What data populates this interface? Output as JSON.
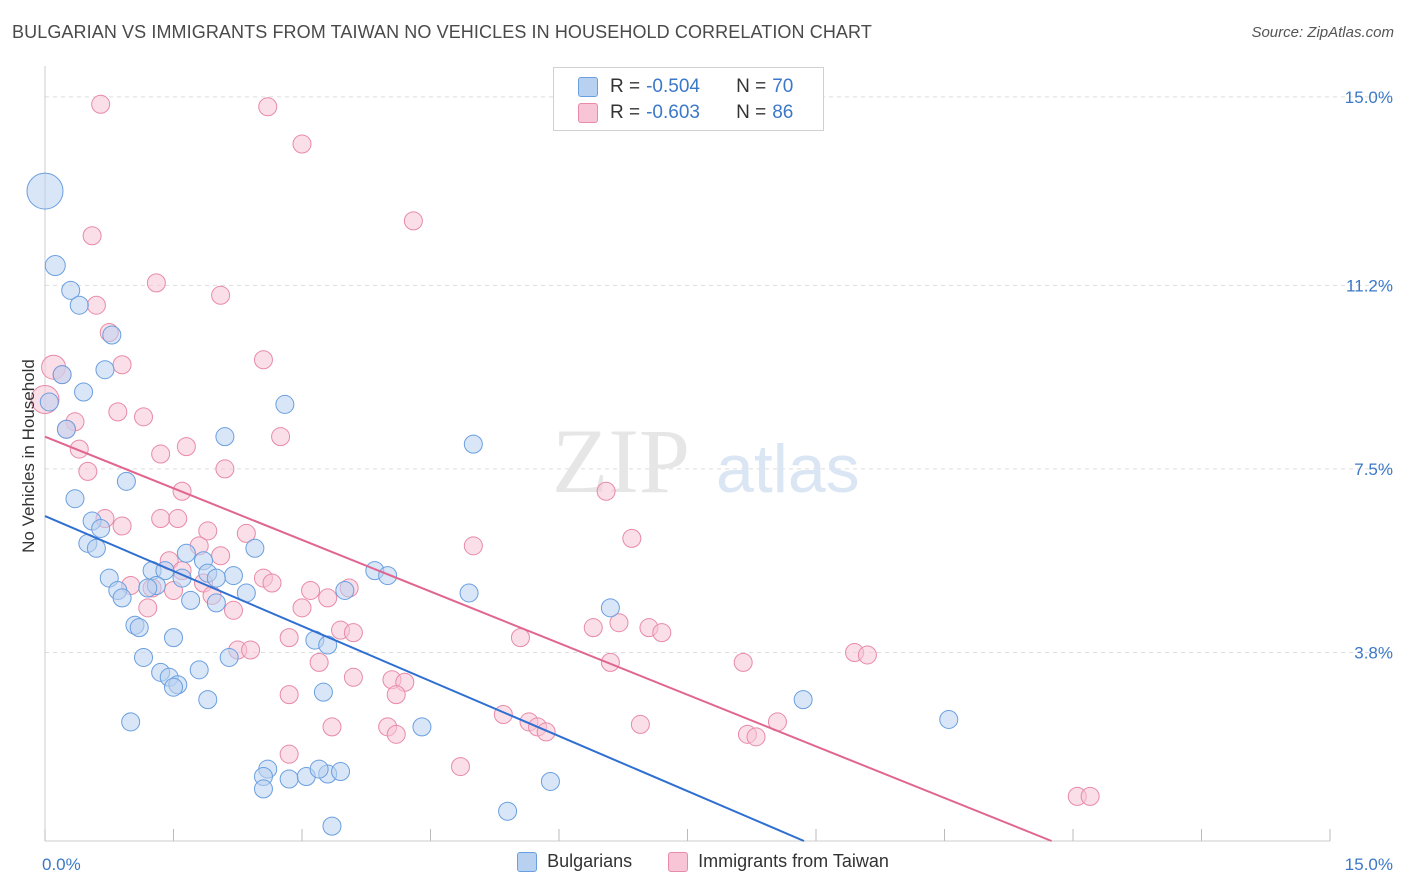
{
  "title": "BULGARIAN VS IMMIGRANTS FROM TAIWAN NO VEHICLES IN HOUSEHOLD CORRELATION CHART",
  "source": "Source: ZipAtlas.com",
  "watermark": {
    "zip": "ZIP",
    "atlas": "atlas"
  },
  "legend": {
    "series1": {
      "r_label": "R =",
      "r_value": "-0.504",
      "n_label": "N =",
      "n_value": "70"
    },
    "series2": {
      "r_label": "R =",
      "r_value": "-0.603",
      "n_label": "N =",
      "n_value": "86"
    }
  },
  "colors": {
    "bulgarians_fill": "#b9d1f0",
    "bulgarians_stroke": "#6a9fe0",
    "bulgarians_line": "#2f6fd1",
    "taiwan_fill": "#f7c5d5",
    "taiwan_stroke": "#e88aa8",
    "taiwan_line": "#e0668f",
    "tick_text": "#3b78c8",
    "grid": "#dddddd"
  },
  "chart_data": {
    "type": "scatter",
    "title": "BULGARIAN VS IMMIGRANTS FROM TAIWAN NO VEHICLES IN HOUSEHOLD CORRELATION CHART",
    "xlabel": "",
    "ylabel": "No Vehicles in Household",
    "xlim": [
      0,
      15
    ],
    "ylim": [
      0,
      15.4
    ],
    "x_tick_labels": [
      "0.0%",
      "15.0%"
    ],
    "y_ticks": [
      3.8,
      7.5,
      11.2,
      15.0
    ],
    "y_tick_labels": [
      "3.8%",
      "7.5%",
      "11.2%",
      "15.0%"
    ],
    "grid": true,
    "legend_position": "top-center",
    "series": [
      {
        "name": "Bulgarians",
        "trend": {
          "x0": 0,
          "y0": 6.55,
          "x1": 8.86,
          "y1": 0
        },
        "points": [
          [
            0.0,
            13.1,
            18
          ],
          [
            0.12,
            11.6,
            10
          ],
          [
            0.3,
            11.1,
            9
          ],
          [
            0.4,
            10.8,
            9
          ],
          [
            0.78,
            10.2,
            9
          ],
          [
            0.2,
            9.4,
            9
          ],
          [
            0.7,
            9.5,
            9
          ],
          [
            0.45,
            9.05,
            9
          ],
          [
            0.05,
            8.85,
            9
          ],
          [
            0.25,
            8.3,
            9
          ],
          [
            2.8,
            8.8,
            9
          ],
          [
            2.1,
            8.15,
            9
          ],
          [
            5.0,
            8.0,
            9
          ],
          [
            0.95,
            7.25,
            9
          ],
          [
            0.35,
            6.9,
            9
          ],
          [
            0.55,
            6.45,
            9
          ],
          [
            0.65,
            6.3,
            9
          ],
          [
            0.5,
            6.0,
            9
          ],
          [
            0.6,
            5.9,
            9
          ],
          [
            2.45,
            5.9,
            9
          ],
          [
            1.65,
            5.8,
            9
          ],
          [
            1.85,
            5.65,
            9
          ],
          [
            1.25,
            5.45,
            9
          ],
          [
            1.4,
            5.45,
            9
          ],
          [
            1.9,
            5.4,
            9
          ],
          [
            2.2,
            5.35,
            9
          ],
          [
            3.85,
            5.45,
            9
          ],
          [
            4.0,
            5.35,
            9
          ],
          [
            0.75,
            5.3,
            9
          ],
          [
            1.6,
            5.3,
            9
          ],
          [
            1.3,
            5.15,
            9
          ],
          [
            1.2,
            5.1,
            9
          ],
          [
            0.85,
            5.05,
            9
          ],
          [
            2.0,
            5.3,
            9
          ],
          [
            3.5,
            5.05,
            9
          ],
          [
            2.35,
            5.0,
            9
          ],
          [
            4.95,
            5.0,
            9
          ],
          [
            0.9,
            4.9,
            9
          ],
          [
            1.7,
            4.85,
            9
          ],
          [
            2.0,
            4.8,
            9
          ],
          [
            6.6,
            4.7,
            9
          ],
          [
            1.05,
            4.35,
            9
          ],
          [
            1.1,
            4.3,
            9
          ],
          [
            1.5,
            4.1,
            9
          ],
          [
            3.15,
            4.05,
            9
          ],
          [
            3.3,
            3.95,
            9
          ],
          [
            1.15,
            3.7,
            9
          ],
          [
            2.15,
            3.7,
            9
          ],
          [
            1.35,
            3.4,
            9
          ],
          [
            1.45,
            3.3,
            9
          ],
          [
            1.8,
            3.45,
            9
          ],
          [
            1.55,
            3.15,
            9
          ],
          [
            1.5,
            3.1,
            9
          ],
          [
            3.25,
            3.0,
            9
          ],
          [
            1.9,
            2.85,
            9
          ],
          [
            8.85,
            2.85,
            9
          ],
          [
            1.0,
            2.4,
            9
          ],
          [
            10.55,
            2.45,
            9
          ],
          [
            4.4,
            2.3,
            9
          ],
          [
            2.6,
            1.45,
            9
          ],
          [
            2.55,
            1.3,
            9
          ],
          [
            2.85,
            1.25,
            9
          ],
          [
            3.05,
            1.3,
            9
          ],
          [
            3.3,
            1.35,
            9
          ],
          [
            3.45,
            1.4,
            9
          ],
          [
            3.2,
            1.45,
            9
          ],
          [
            2.55,
            1.05,
            9
          ],
          [
            5.9,
            1.2,
            9
          ],
          [
            5.4,
            0.6,
            9
          ],
          [
            3.35,
            0.3,
            9
          ]
        ]
      },
      {
        "name": "Immigrants from Taiwan",
        "trend": {
          "x0": 0,
          "y0": 8.15,
          "x1": 11.75,
          "y1": 0
        },
        "points": [
          [
            0.65,
            14.85,
            9
          ],
          [
            2.6,
            14.8,
            9
          ],
          [
            3.0,
            14.05,
            9
          ],
          [
            4.3,
            12.5,
            9
          ],
          [
            0.55,
            12.2,
            9
          ],
          [
            1.3,
            11.25,
            9
          ],
          [
            2.05,
            11.0,
            9
          ],
          [
            0.6,
            10.8,
            9
          ],
          [
            0.75,
            10.25,
            9
          ],
          [
            2.55,
            9.7,
            9
          ],
          [
            0.1,
            9.55,
            12
          ],
          [
            0.9,
            9.6,
            9
          ],
          [
            0.2,
            9.4,
            9
          ],
          [
            0.0,
            8.9,
            14
          ],
          [
            0.85,
            8.65,
            9
          ],
          [
            1.15,
            8.55,
            9
          ],
          [
            0.35,
            8.45,
            9
          ],
          [
            0.25,
            8.3,
            9
          ],
          [
            2.75,
            8.15,
            9
          ],
          [
            1.65,
            7.95,
            9
          ],
          [
            0.4,
            7.9,
            9
          ],
          [
            1.35,
            7.8,
            9
          ],
          [
            2.1,
            7.5,
            9
          ],
          [
            0.5,
            7.45,
            9
          ],
          [
            1.6,
            7.05,
            9
          ],
          [
            6.55,
            7.05,
            9
          ],
          [
            0.7,
            6.5,
            9
          ],
          [
            1.35,
            6.5,
            9
          ],
          [
            1.55,
            6.5,
            9
          ],
          [
            0.9,
            6.35,
            9
          ],
          [
            1.9,
            6.25,
            9
          ],
          [
            2.35,
            6.2,
            9
          ],
          [
            6.85,
            6.1,
            9
          ],
          [
            1.8,
            5.95,
            9
          ],
          [
            5.0,
            5.95,
            9
          ],
          [
            1.45,
            5.65,
            9
          ],
          [
            2.05,
            5.75,
            9
          ],
          [
            1.6,
            5.45,
            9
          ],
          [
            2.55,
            5.3,
            9
          ],
          [
            1.85,
            5.2,
            9
          ],
          [
            2.65,
            5.2,
            9
          ],
          [
            1.0,
            5.15,
            9
          ],
          [
            1.25,
            5.1,
            9
          ],
          [
            1.5,
            5.05,
            9
          ],
          [
            3.1,
            5.05,
            9
          ],
          [
            3.55,
            5.1,
            9
          ],
          [
            1.95,
            4.95,
            9
          ],
          [
            3.3,
            4.9,
            9
          ],
          [
            3.0,
            4.7,
            9
          ],
          [
            2.2,
            4.65,
            9
          ],
          [
            1.2,
            4.7,
            9
          ],
          [
            6.7,
            4.4,
            9
          ],
          [
            6.4,
            4.3,
            9
          ],
          [
            7.05,
            4.3,
            9
          ],
          [
            7.2,
            4.2,
            9
          ],
          [
            3.45,
            4.25,
            9
          ],
          [
            3.6,
            4.2,
            9
          ],
          [
            5.55,
            4.1,
            9
          ],
          [
            2.85,
            4.1,
            9
          ],
          [
            2.25,
            3.85,
            9
          ],
          [
            2.4,
            3.85,
            9
          ],
          [
            9.45,
            3.8,
            9
          ],
          [
            9.6,
            3.75,
            9
          ],
          [
            3.2,
            3.6,
            9
          ],
          [
            6.6,
            3.6,
            9
          ],
          [
            8.15,
            3.6,
            9
          ],
          [
            3.6,
            3.3,
            9
          ],
          [
            4.05,
            3.25,
            9
          ],
          [
            4.2,
            3.2,
            9
          ],
          [
            4.1,
            2.95,
            9
          ],
          [
            2.85,
            2.95,
            9
          ],
          [
            5.35,
            2.55,
            9
          ],
          [
            5.65,
            2.4,
            9
          ],
          [
            5.75,
            2.3,
            9
          ],
          [
            6.95,
            2.35,
            9
          ],
          [
            3.35,
            2.3,
            9
          ],
          [
            4.0,
            2.3,
            9
          ],
          [
            4.1,
            2.15,
            9
          ],
          [
            5.85,
            2.2,
            9
          ],
          [
            8.2,
            2.15,
            9
          ],
          [
            8.3,
            2.1,
            9
          ],
          [
            2.85,
            1.75,
            9
          ],
          [
            4.85,
            1.5,
            9
          ],
          [
            12.05,
            0.9,
            9
          ],
          [
            12.2,
            0.9,
            9
          ],
          [
            8.55,
            2.4,
            9
          ]
        ]
      }
    ]
  },
  "bottom_legend": {
    "item1": "Bulgarians",
    "item2": "Immigrants from Taiwan"
  }
}
